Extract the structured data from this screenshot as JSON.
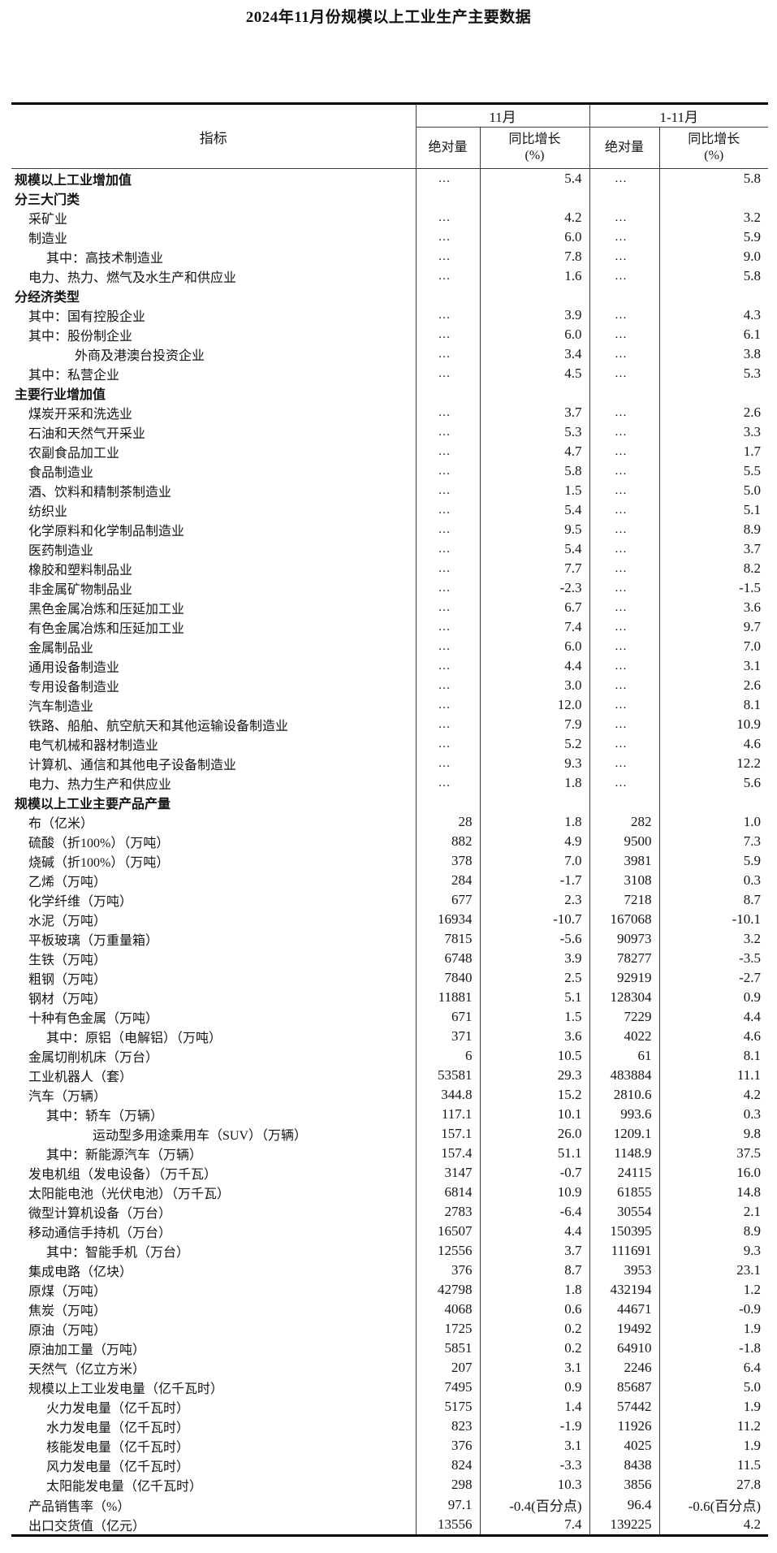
{
  "page": {
    "title": "2024年11月份规模以上工业生产主要数据"
  },
  "colors": {
    "background": "#ffffff",
    "text": "#141414",
    "border_thick": "#000000",
    "border_thin": "#3a3a3a"
  },
  "table": {
    "header": {
      "indicator": "指标",
      "month_group": "11月",
      "cumulative_group": "1-11月",
      "absolute": "绝对量",
      "yoy": "同比增长\n(%)"
    },
    "rows": [
      {
        "label": "规模以上工业增加值",
        "indent": 0,
        "bold": true,
        "m_abs": "…",
        "m_yoy": "5.4",
        "c_abs": "…",
        "c_yoy": "5.8"
      },
      {
        "label": "分三大门类",
        "indent": 0,
        "bold": true,
        "m_abs": "",
        "m_yoy": "",
        "c_abs": "",
        "c_yoy": ""
      },
      {
        "label": "采矿业",
        "indent": 1,
        "bold": false,
        "m_abs": "…",
        "m_yoy": "4.2",
        "c_abs": "…",
        "c_yoy": "3.2"
      },
      {
        "label": "制造业",
        "indent": 1,
        "bold": false,
        "m_abs": "…",
        "m_yoy": "6.0",
        "c_abs": "…",
        "c_yoy": "5.9"
      },
      {
        "label": "其中：高技术制造业",
        "indent": 2,
        "bold": false,
        "m_abs": "…",
        "m_yoy": "7.8",
        "c_abs": "…",
        "c_yoy": "9.0"
      },
      {
        "label": "电力、热力、燃气及水生产和供应业",
        "indent": 1,
        "bold": false,
        "m_abs": "…",
        "m_yoy": "1.6",
        "c_abs": "…",
        "c_yoy": "5.8"
      },
      {
        "label": "分经济类型",
        "indent": 0,
        "bold": true,
        "m_abs": "",
        "m_yoy": "",
        "c_abs": "",
        "c_yoy": ""
      },
      {
        "label": "其中：国有控股企业",
        "indent": 1,
        "bold": false,
        "m_abs": "…",
        "m_yoy": "3.9",
        "c_abs": "…",
        "c_yoy": "4.3"
      },
      {
        "label": "其中：股份制企业",
        "indent": 1,
        "bold": false,
        "m_abs": "…",
        "m_yoy": "6.0",
        "c_abs": "…",
        "c_yoy": "6.1"
      },
      {
        "label": "外商及港澳台投资企业",
        "indent": 3,
        "bold": false,
        "m_abs": "…",
        "m_yoy": "3.4",
        "c_abs": "…",
        "c_yoy": "3.8"
      },
      {
        "label": "其中：私营企业",
        "indent": 1,
        "bold": false,
        "m_abs": "…",
        "m_yoy": "4.5",
        "c_abs": "…",
        "c_yoy": "5.3"
      },
      {
        "label": "主要行业增加值",
        "indent": 0,
        "bold": true,
        "m_abs": "",
        "m_yoy": "",
        "c_abs": "",
        "c_yoy": ""
      },
      {
        "label": "煤炭开采和洗选业",
        "indent": 1,
        "bold": false,
        "m_abs": "…",
        "m_yoy": "3.7",
        "c_abs": "…",
        "c_yoy": "2.6"
      },
      {
        "label": "石油和天然气开采业",
        "indent": 1,
        "bold": false,
        "m_abs": "…",
        "m_yoy": "5.3",
        "c_abs": "…",
        "c_yoy": "3.3"
      },
      {
        "label": "农副食品加工业",
        "indent": 1,
        "bold": false,
        "m_abs": "…",
        "m_yoy": "4.7",
        "c_abs": "…",
        "c_yoy": "1.7"
      },
      {
        "label": "食品制造业",
        "indent": 1,
        "bold": false,
        "m_abs": "…",
        "m_yoy": "5.8",
        "c_abs": "…",
        "c_yoy": "5.5"
      },
      {
        "label": "酒、饮料和精制茶制造业",
        "indent": 1,
        "bold": false,
        "m_abs": "…",
        "m_yoy": "1.5",
        "c_abs": "…",
        "c_yoy": "5.0"
      },
      {
        "label": "纺织业",
        "indent": 1,
        "bold": false,
        "m_abs": "…",
        "m_yoy": "5.4",
        "c_abs": "…",
        "c_yoy": "5.1"
      },
      {
        "label": "化学原料和化学制品制造业",
        "indent": 1,
        "bold": false,
        "m_abs": "…",
        "m_yoy": "9.5",
        "c_abs": "…",
        "c_yoy": "8.9"
      },
      {
        "label": "医药制造业",
        "indent": 1,
        "bold": false,
        "m_abs": "…",
        "m_yoy": "5.4",
        "c_abs": "…",
        "c_yoy": "3.7"
      },
      {
        "label": "橡胶和塑料制品业",
        "indent": 1,
        "bold": false,
        "m_abs": "…",
        "m_yoy": "7.7",
        "c_abs": "…",
        "c_yoy": "8.2"
      },
      {
        "label": "非金属矿物制品业",
        "indent": 1,
        "bold": false,
        "m_abs": "…",
        "m_yoy": "-2.3",
        "c_abs": "…",
        "c_yoy": "-1.5"
      },
      {
        "label": "黑色金属冶炼和压延加工业",
        "indent": 1,
        "bold": false,
        "m_abs": "…",
        "m_yoy": "6.7",
        "c_abs": "…",
        "c_yoy": "3.6"
      },
      {
        "label": "有色金属冶炼和压延加工业",
        "indent": 1,
        "bold": false,
        "m_abs": "…",
        "m_yoy": "7.4",
        "c_abs": "…",
        "c_yoy": "9.7"
      },
      {
        "label": "金属制品业",
        "indent": 1,
        "bold": false,
        "m_abs": "…",
        "m_yoy": "6.0",
        "c_abs": "…",
        "c_yoy": "7.0"
      },
      {
        "label": "通用设备制造业",
        "indent": 1,
        "bold": false,
        "m_abs": "…",
        "m_yoy": "4.4",
        "c_abs": "…",
        "c_yoy": "3.1"
      },
      {
        "label": "专用设备制造业",
        "indent": 1,
        "bold": false,
        "m_abs": "…",
        "m_yoy": "3.0",
        "c_abs": "…",
        "c_yoy": "2.6"
      },
      {
        "label": "汽车制造业",
        "indent": 1,
        "bold": false,
        "m_abs": "…",
        "m_yoy": "12.0",
        "c_abs": "…",
        "c_yoy": "8.1"
      },
      {
        "label": "铁路、船舶、航空航天和其他运输设备制造业",
        "indent": 1,
        "bold": false,
        "m_abs": "…",
        "m_yoy": "7.9",
        "c_abs": "…",
        "c_yoy": "10.9"
      },
      {
        "label": "电气机械和器材制造业",
        "indent": 1,
        "bold": false,
        "m_abs": "…",
        "m_yoy": "5.2",
        "c_abs": "…",
        "c_yoy": "4.6"
      },
      {
        "label": "计算机、通信和其他电子设备制造业",
        "indent": 1,
        "bold": false,
        "m_abs": "…",
        "m_yoy": "9.3",
        "c_abs": "…",
        "c_yoy": "12.2"
      },
      {
        "label": "电力、热力生产和供应业",
        "indent": 1,
        "bold": false,
        "m_abs": "…",
        "m_yoy": "1.8",
        "c_abs": "…",
        "c_yoy": "5.6"
      },
      {
        "label": "规模以上工业主要产品产量",
        "indent": 0,
        "bold": true,
        "m_abs": "",
        "m_yoy": "",
        "c_abs": "",
        "c_yoy": ""
      },
      {
        "label": "布（亿米）",
        "indent": 1,
        "bold": false,
        "m_abs": "28",
        "m_yoy": "1.8",
        "c_abs": "282",
        "c_yoy": "1.0"
      },
      {
        "label": "硫酸（折100%）（万吨）",
        "indent": 1,
        "bold": false,
        "m_abs": "882",
        "m_yoy": "4.9",
        "c_abs": "9500",
        "c_yoy": "7.3"
      },
      {
        "label": "烧碱（折100%）（万吨）",
        "indent": 1,
        "bold": false,
        "m_abs": "378",
        "m_yoy": "7.0",
        "c_abs": "3981",
        "c_yoy": "5.9"
      },
      {
        "label": "乙烯（万吨）",
        "indent": 1,
        "bold": false,
        "m_abs": "284",
        "m_yoy": "-1.7",
        "c_abs": "3108",
        "c_yoy": "0.3"
      },
      {
        "label": "化学纤维（万吨）",
        "indent": 1,
        "bold": false,
        "m_abs": "677",
        "m_yoy": "2.3",
        "c_abs": "7218",
        "c_yoy": "8.7"
      },
      {
        "label": "水泥（万吨）",
        "indent": 1,
        "bold": false,
        "m_abs": "16934",
        "m_yoy": "-10.7",
        "c_abs": "167068",
        "c_yoy": "-10.1"
      },
      {
        "label": "平板玻璃（万重量箱）",
        "indent": 1,
        "bold": false,
        "m_abs": "7815",
        "m_yoy": "-5.6",
        "c_abs": "90973",
        "c_yoy": "3.2"
      },
      {
        "label": "生铁（万吨）",
        "indent": 1,
        "bold": false,
        "m_abs": "6748",
        "m_yoy": "3.9",
        "c_abs": "78277",
        "c_yoy": "-3.5"
      },
      {
        "label": "粗钢（万吨）",
        "indent": 1,
        "bold": false,
        "m_abs": "7840",
        "m_yoy": "2.5",
        "c_abs": "92919",
        "c_yoy": "-2.7"
      },
      {
        "label": "钢材（万吨）",
        "indent": 1,
        "bold": false,
        "m_abs": "11881",
        "m_yoy": "5.1",
        "c_abs": "128304",
        "c_yoy": "0.9"
      },
      {
        "label": "十种有色金属（万吨）",
        "indent": 1,
        "bold": false,
        "m_abs": "671",
        "m_yoy": "1.5",
        "c_abs": "7229",
        "c_yoy": "4.4"
      },
      {
        "label": "其中：原铝（电解铝）（万吨）",
        "indent": 2,
        "bold": false,
        "m_abs": "371",
        "m_yoy": "3.6",
        "c_abs": "4022",
        "c_yoy": "4.6"
      },
      {
        "label": "金属切削机床（万台）",
        "indent": 1,
        "bold": false,
        "m_abs": "6",
        "m_yoy": "10.5",
        "c_abs": "61",
        "c_yoy": "8.1"
      },
      {
        "label": "工业机器人（套）",
        "indent": 1,
        "bold": false,
        "m_abs": "53581",
        "m_yoy": "29.3",
        "c_abs": "483884",
        "c_yoy": "11.1"
      },
      {
        "label": "汽车（万辆）",
        "indent": 1,
        "bold": false,
        "m_abs": "344.8",
        "m_yoy": "15.2",
        "c_abs": "2810.6",
        "c_yoy": "4.2"
      },
      {
        "label": "其中：轿车（万辆）",
        "indent": 2,
        "bold": false,
        "m_abs": "117.1",
        "m_yoy": "10.1",
        "c_abs": "993.6",
        "c_yoy": "0.3"
      },
      {
        "label": "运动型多用途乘用车（SUV）（万辆）",
        "indent": 4,
        "bold": false,
        "m_abs": "157.1",
        "m_yoy": "26.0",
        "c_abs": "1209.1",
        "c_yoy": "9.8"
      },
      {
        "label": "其中：新能源汽车（万辆）",
        "indent": 2,
        "bold": false,
        "m_abs": "157.4",
        "m_yoy": "51.1",
        "c_abs": "1148.9",
        "c_yoy": "37.5"
      },
      {
        "label": "发电机组（发电设备）（万千瓦）",
        "indent": 1,
        "bold": false,
        "m_abs": "3147",
        "m_yoy": "-0.7",
        "c_abs": "24115",
        "c_yoy": "16.0"
      },
      {
        "label": "太阳能电池（光伏电池）（万千瓦）",
        "indent": 1,
        "bold": false,
        "m_abs": "6814",
        "m_yoy": "10.9",
        "c_abs": "61855",
        "c_yoy": "14.8"
      },
      {
        "label": "微型计算机设备（万台）",
        "indent": 1,
        "bold": false,
        "m_abs": "2783",
        "m_yoy": "-6.4",
        "c_abs": "30554",
        "c_yoy": "2.1"
      },
      {
        "label": "移动通信手持机（万台）",
        "indent": 1,
        "bold": false,
        "m_abs": "16507",
        "m_yoy": "4.4",
        "c_abs": "150395",
        "c_yoy": "8.9"
      },
      {
        "label": "其中：智能手机（万台）",
        "indent": 2,
        "bold": false,
        "m_abs": "12556",
        "m_yoy": "3.7",
        "c_abs": "111691",
        "c_yoy": "9.3"
      },
      {
        "label": "集成电路（亿块）",
        "indent": 1,
        "bold": false,
        "m_abs": "376",
        "m_yoy": "8.7",
        "c_abs": "3953",
        "c_yoy": "23.1"
      },
      {
        "label": "原煤（万吨）",
        "indent": 1,
        "bold": false,
        "m_abs": "42798",
        "m_yoy": "1.8",
        "c_abs": "432194",
        "c_yoy": "1.2"
      },
      {
        "label": "焦炭（万吨）",
        "indent": 1,
        "bold": false,
        "m_abs": "4068",
        "m_yoy": "0.6",
        "c_abs": "44671",
        "c_yoy": "-0.9"
      },
      {
        "label": "原油（万吨）",
        "indent": 1,
        "bold": false,
        "m_abs": "1725",
        "m_yoy": "0.2",
        "c_abs": "19492",
        "c_yoy": "1.9"
      },
      {
        "label": "原油加工量（万吨）",
        "indent": 1,
        "bold": false,
        "m_abs": "5851",
        "m_yoy": "0.2",
        "c_abs": "64910",
        "c_yoy": "-1.8"
      },
      {
        "label": "天然气（亿立方米）",
        "indent": 1,
        "bold": false,
        "m_abs": "207",
        "m_yoy": "3.1",
        "c_abs": "2246",
        "c_yoy": "6.4"
      },
      {
        "label": "规模以上工业发电量（亿千瓦时）",
        "indent": 1,
        "bold": false,
        "m_abs": "7495",
        "m_yoy": "0.9",
        "c_abs": "85687",
        "c_yoy": "5.0"
      },
      {
        "label": "火力发电量（亿千瓦时）",
        "indent": 2,
        "bold": false,
        "m_abs": "5175",
        "m_yoy": "1.4",
        "c_abs": "57442",
        "c_yoy": "1.9"
      },
      {
        "label": "水力发电量（亿千瓦时）",
        "indent": 2,
        "bold": false,
        "m_abs": "823",
        "m_yoy": "-1.9",
        "c_abs": "11926",
        "c_yoy": "11.2"
      },
      {
        "label": "核能发电量（亿千瓦时）",
        "indent": 2,
        "bold": false,
        "m_abs": "376",
        "m_yoy": "3.1",
        "c_abs": "4025",
        "c_yoy": "1.9"
      },
      {
        "label": "风力发电量（亿千瓦时）",
        "indent": 2,
        "bold": false,
        "m_abs": "824",
        "m_yoy": "-3.3",
        "c_abs": "8438",
        "c_yoy": "11.5"
      },
      {
        "label": "太阳能发电量（亿千瓦时）",
        "indent": 2,
        "bold": false,
        "m_abs": "298",
        "m_yoy": "10.3",
        "c_abs": "3856",
        "c_yoy": "27.8"
      },
      {
        "label": "产品销售率（%）",
        "indent": 1,
        "bold": false,
        "m_abs": "97.1",
        "m_yoy": "-0.4(百分点)",
        "c_abs": "96.4",
        "c_yoy": "-0.6(百分点)"
      },
      {
        "label": "出口交货值（亿元）",
        "indent": 1,
        "bold": false,
        "m_abs": "13556",
        "m_yoy": "7.4",
        "c_abs": "139225",
        "c_yoy": "4.2"
      }
    ]
  }
}
